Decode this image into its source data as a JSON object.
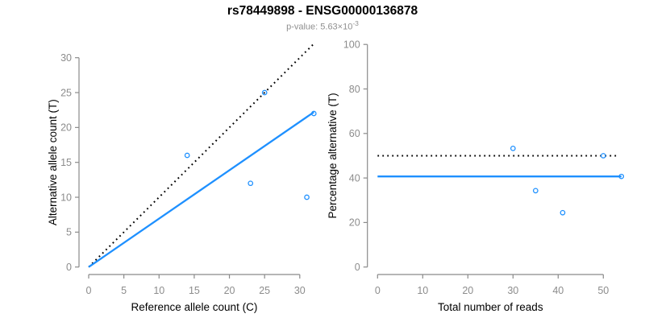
{
  "header": {
    "title": "rs78449898 - ENSG00000136878",
    "subtitle_base": "p-value: 5.63×10",
    "subtitle_exponent": "-3"
  },
  "colors": {
    "accent_blue": "#1E90FF",
    "axis_gray": "#8A8A8A",
    "label_gray": "#8C8C8C",
    "title_black": "#000000",
    "subtitle_gray": "#8F8F8F"
  },
  "chart_data": [
    {
      "type": "scatter",
      "panel": "left",
      "xlabel": "Reference allele count (C)",
      "ylabel": "Alternative allele count (T)",
      "xlim": [
        0,
        32.5
      ],
      "ylim": [
        0,
        32.5
      ],
      "xticks": [
        0,
        5,
        10,
        15,
        20,
        25,
        30
      ],
      "yticks": [
        0,
        5,
        10,
        15,
        20,
        25,
        30
      ],
      "grid": false,
      "legend": null,
      "points": [
        [
          14,
          16
        ],
        [
          23,
          12
        ],
        [
          25,
          25
        ],
        [
          31,
          10
        ],
        [
          32,
          22
        ]
      ],
      "lines": [
        {
          "name": "identity-line",
          "style": "dotted",
          "color": "#000000",
          "x1": 0,
          "y1": 0,
          "x2": 31.9,
          "y2": 31.9
        },
        {
          "name": "fit-line",
          "style": "solid",
          "color": "#1E90FF",
          "x1": 0,
          "y1": 0,
          "x2": 32,
          "y2": 22.2
        }
      ]
    },
    {
      "type": "scatter",
      "panel": "right",
      "xlabel": "Total number of reads",
      "ylabel": "Percentage alternative (T)",
      "xlim": [
        0,
        56
      ],
      "ylim": [
        0,
        100
      ],
      "xticks": [
        0,
        10,
        20,
        30,
        40,
        50
      ],
      "yticks": [
        0,
        20,
        40,
        60,
        80,
        100
      ],
      "grid": false,
      "legend": null,
      "points": [
        [
          30,
          53.3
        ],
        [
          35,
          34.3
        ],
        [
          41,
          24.4
        ],
        [
          50,
          50
        ],
        [
          54,
          40.7
        ]
      ],
      "lines": [
        {
          "name": "expected-50pct-line",
          "style": "dotted",
          "color": "#000000",
          "x1": 0,
          "y1": 50,
          "x2": 53.5,
          "y2": 50
        },
        {
          "name": "fit-percentage-line",
          "style": "solid",
          "color": "#1E90FF",
          "x1": 0,
          "y1": 40.7,
          "x2": 54,
          "y2": 40.7
        }
      ]
    }
  ]
}
